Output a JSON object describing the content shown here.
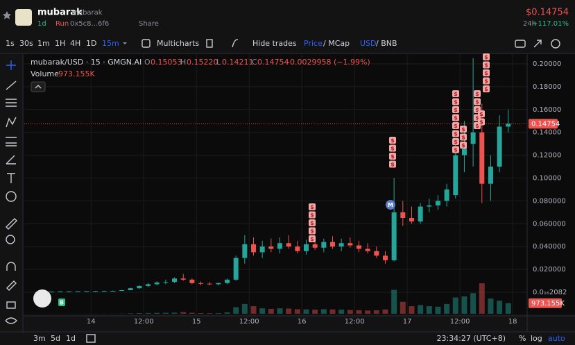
{
  "header": {
    "name": "mubarak",
    "ticker": "mubarak",
    "age": "1d",
    "status": "Run",
    "address": "0x5c8...6f6",
    "share": "Share",
    "price": "$0.14754",
    "change_period": "24h",
    "change": "+117.01%"
  },
  "toolbar": {
    "intervals": [
      "1s",
      "30s",
      "1m",
      "1H",
      "4H",
      "1D",
      "15m"
    ],
    "multicharts": "Multicharts",
    "hide_trades": "Hide trades",
    "price": "Price",
    "mcap": "/ MCap",
    "usd": "USD",
    "bnb": "/ BNB"
  },
  "legend": {
    "symbol": "mubarak/USD · 15 · GMGN.AI",
    "o_key": "O",
    "o": "0.15053",
    "h_key": "H",
    "h": "0.15220",
    "l_key": "L",
    "l": "0.14211",
    "c_key": "C",
    "c": "0.14754",
    "change": "-0.0029958 (−1.99%)",
    "volume_key": "Volume",
    "volume": "973.155K"
  },
  "chart_data": {
    "type": "candlestick",
    "up_color": "#26a69a",
    "down_color": "#ef5350",
    "xlim": [
      8.8,
      123.3
    ],
    "xticks": [
      {
        "value": 24,
        "label": "14"
      },
      {
        "value": 36,
        "label": "12:00"
      },
      {
        "value": 48,
        "label": "15"
      },
      {
        "value": 60,
        "label": "12:00"
      },
      {
        "value": 72,
        "label": "16"
      },
      {
        "value": 84,
        "label": "12:00"
      },
      {
        "value": 96,
        "label": "17"
      },
      {
        "value": 108,
        "label": "12:00"
      },
      {
        "value": 120,
        "label": "18"
      }
    ],
    "ylim": [
      -0.0207,
      0.2085
    ],
    "yticks": [
      {
        "value": 0.2,
        "label": "0.20000"
      },
      {
        "value": 0.18,
        "label": "0.18000"
      },
      {
        "value": 0.16,
        "label": "0.16000"
      },
      {
        "value": 0.14,
        "label": "0.14000"
      },
      {
        "value": 0.12,
        "label": "0.12000"
      },
      {
        "value": 0.1,
        "label": "0.10000"
      },
      {
        "value": 0.08,
        "label": "0.080000"
      },
      {
        "value": 0.06,
        "label": "0.060000"
      },
      {
        "value": 0.04,
        "label": "0.040000"
      },
      {
        "value": 0.02,
        "label": "0.020000"
      },
      {
        "value": 2.082e-17,
        "label": "0.0₁₆2082"
      }
    ],
    "volume_lim": [
      0,
      3000
    ],
    "last_price": 0.14754,
    "trade_marker": "$",
    "migration_marker": "M",
    "buy_marker": "B",
    "candles": [
      {
        "x": 15,
        "o": 0.0005,
        "h": 0.0006,
        "l": 0.0004,
        "c": 0.0005,
        "v": 5
      },
      {
        "x": 17,
        "o": 0.0005,
        "h": 0.0007,
        "l": 0.0004,
        "c": 0.0006,
        "v": 4
      },
      {
        "x": 19,
        "o": 0.0006,
        "h": 0.0008,
        "l": 0.0005,
        "c": 0.0007,
        "v": 4
      },
      {
        "x": 21,
        "o": 0.0007,
        "h": 0.0009,
        "l": 0.0006,
        "c": 0.0008,
        "v": 5
      },
      {
        "x": 23,
        "o": 0.0008,
        "h": 0.001,
        "l": 0.0006,
        "c": 0.0009,
        "v": 6
      },
      {
        "x": 25,
        "o": 0.0009,
        "h": 0.0012,
        "l": 0.0007,
        "c": 0.001,
        "v": 8
      },
      {
        "x": 27,
        "o": 0.001,
        "h": 0.0013,
        "l": 0.0008,
        "c": 0.0011,
        "v": 8
      },
      {
        "x": 29,
        "o": 0.0011,
        "h": 0.0014,
        "l": 0.0009,
        "c": 0.0012,
        "v": 10
      },
      {
        "x": 31,
        "o": 0.0012,
        "h": 0.002,
        "l": 0.001,
        "c": 0.0018,
        "v": 20
      },
      {
        "x": 33,
        "o": 0.0018,
        "h": 0.004,
        "l": 0.0016,
        "c": 0.0035,
        "v": 40
      },
      {
        "x": 35,
        "o": 0.0035,
        "h": 0.006,
        "l": 0.003,
        "c": 0.0055,
        "v": 60
      },
      {
        "x": 37,
        "o": 0.0055,
        "h": 0.008,
        "l": 0.0045,
        "c": 0.007,
        "v": 70
      },
      {
        "x": 39,
        "o": 0.007,
        "h": 0.0095,
        "l": 0.006,
        "c": 0.0085,
        "v": 80
      },
      {
        "x": 41,
        "o": 0.0085,
        "h": 0.011,
        "l": 0.007,
        "c": 0.009,
        "v": 90
      },
      {
        "x": 43,
        "o": 0.009,
        "h": 0.013,
        "l": 0.008,
        "c": 0.012,
        "v": 100
      },
      {
        "x": 45,
        "o": 0.012,
        "h": 0.016,
        "l": 0.01,
        "c": 0.011,
        "v": 150
      },
      {
        "x": 47,
        "o": 0.011,
        "h": 0.012,
        "l": 0.007,
        "c": 0.008,
        "v": 90
      },
      {
        "x": 49,
        "o": 0.008,
        "h": 0.0095,
        "l": 0.006,
        "c": 0.0075,
        "v": 60
      },
      {
        "x": 51,
        "o": 0.0075,
        "h": 0.009,
        "l": 0.006,
        "c": 0.007,
        "v": 50
      },
      {
        "x": 53,
        "o": 0.007,
        "h": 0.0085,
        "l": 0.006,
        "c": 0.008,
        "v": 60
      },
      {
        "x": 55,
        "o": 0.008,
        "h": 0.012,
        "l": 0.007,
        "c": 0.011,
        "v": 120
      },
      {
        "x": 57,
        "o": 0.011,
        "h": 0.032,
        "l": 0.01,
        "c": 0.03,
        "v": 600
      },
      {
        "x": 59,
        "o": 0.03,
        "h": 0.05,
        "l": 0.025,
        "c": 0.042,
        "v": 900
      },
      {
        "x": 61,
        "o": 0.042,
        "h": 0.048,
        "l": 0.032,
        "c": 0.035,
        "v": 700
      },
      {
        "x": 63,
        "o": 0.035,
        "h": 0.045,
        "l": 0.03,
        "c": 0.04,
        "v": 500
      },
      {
        "x": 65,
        "o": 0.04,
        "h": 0.047,
        "l": 0.035,
        "c": 0.038,
        "v": 450
      },
      {
        "x": 67,
        "o": 0.038,
        "h": 0.048,
        "l": 0.034,
        "c": 0.043,
        "v": 500
      },
      {
        "x": 69,
        "o": 0.043,
        "h": 0.05,
        "l": 0.038,
        "c": 0.04,
        "v": 480
      },
      {
        "x": 71,
        "o": 0.04,
        "h": 0.045,
        "l": 0.034,
        "c": 0.036,
        "v": 420
      },
      {
        "x": 73,
        "o": 0.036,
        "h": 0.046,
        "l": 0.033,
        "c": 0.042,
        "v": 400
      },
      {
        "x": 75,
        "o": 0.042,
        "h": 0.048,
        "l": 0.037,
        "c": 0.039,
        "v": 380
      },
      {
        "x": 77,
        "o": 0.039,
        "h": 0.047,
        "l": 0.035,
        "c": 0.044,
        "v": 420
      },
      {
        "x": 79,
        "o": 0.044,
        "h": 0.049,
        "l": 0.038,
        "c": 0.04,
        "v": 400
      },
      {
        "x": 81,
        "o": 0.04,
        "h": 0.047,
        "l": 0.036,
        "c": 0.043,
        "v": 380
      },
      {
        "x": 83,
        "o": 0.043,
        "h": 0.048,
        "l": 0.039,
        "c": 0.041,
        "v": 350
      },
      {
        "x": 85,
        "o": 0.041,
        "h": 0.045,
        "l": 0.035,
        "c": 0.038,
        "v": 330
      },
      {
        "x": 87,
        "o": 0.038,
        "h": 0.043,
        "l": 0.034,
        "c": 0.036,
        "v": 300
      },
      {
        "x": 89,
        "o": 0.036,
        "h": 0.04,
        "l": 0.03,
        "c": 0.032,
        "v": 320
      },
      {
        "x": 91,
        "o": 0.032,
        "h": 0.036,
        "l": 0.025,
        "c": 0.028,
        "v": 400
      },
      {
        "x": 93,
        "o": 0.028,
        "h": 0.1,
        "l": 0.027,
        "c": 0.07,
        "v": 2200
      },
      {
        "x": 95,
        "o": 0.07,
        "h": 0.08,
        "l": 0.058,
        "c": 0.065,
        "v": 1100
      },
      {
        "x": 97,
        "o": 0.065,
        "h": 0.075,
        "l": 0.06,
        "c": 0.062,
        "v": 700
      },
      {
        "x": 99,
        "o": 0.062,
        "h": 0.078,
        "l": 0.06,
        "c": 0.075,
        "v": 800
      },
      {
        "x": 101,
        "o": 0.075,
        "h": 0.082,
        "l": 0.07,
        "c": 0.076,
        "v": 700
      },
      {
        "x": 103,
        "o": 0.076,
        "h": 0.085,
        "l": 0.072,
        "c": 0.08,
        "v": 650
      },
      {
        "x": 105,
        "o": 0.08,
        "h": 0.095,
        "l": 0.075,
        "c": 0.09,
        "v": 900
      },
      {
        "x": 107,
        "o": 0.085,
        "h": 0.13,
        "l": 0.082,
        "c": 0.12,
        "v": 1500
      },
      {
        "x": 109,
        "o": 0.12,
        "h": 0.15,
        "l": 0.105,
        "c": 0.13,
        "v": 1600
      },
      {
        "x": 111,
        "o": 0.13,
        "h": 0.205,
        "l": 0.11,
        "c": 0.14,
        "v": 1900
      },
      {
        "x": 113,
        "o": 0.14,
        "h": 0.165,
        "l": 0.078,
        "c": 0.095,
        "v": 2800
      },
      {
        "x": 115,
        "o": 0.095,
        "h": 0.12,
        "l": 0.08,
        "c": 0.11,
        "v": 1400
      },
      {
        "x": 117,
        "o": 0.11,
        "h": 0.155,
        "l": 0.105,
        "c": 0.145,
        "v": 1200
      },
      {
        "x": 119,
        "o": 0.145,
        "h": 0.16,
        "l": 0.14,
        "c": 0.1475,
        "v": 973.155
      }
    ]
  },
  "footer": {
    "ranges": [
      "3m",
      "5d",
      "1d"
    ],
    "clock": "23:34:27 (UTC+8)",
    "percent": "%",
    "log": "log",
    "auto": "auto"
  }
}
